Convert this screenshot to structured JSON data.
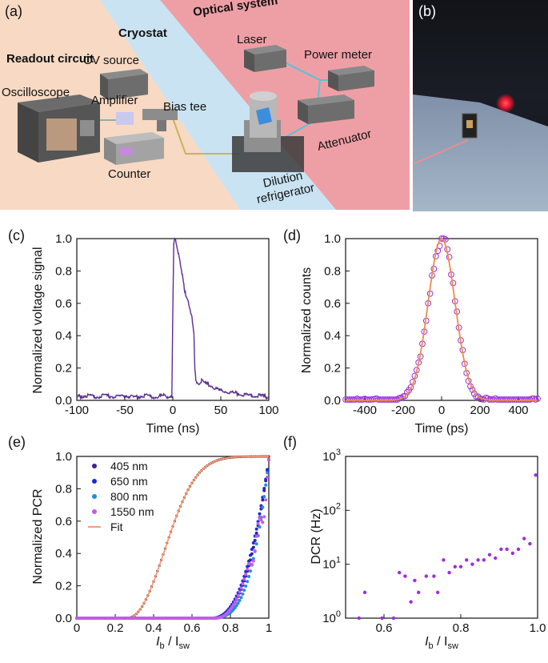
{
  "panel_a": {
    "letter": "(a)",
    "titles": {
      "readout": "Readout circuit",
      "cryostat": "Cryostat",
      "optical": "Optical system"
    },
    "labels": {
      "oscilloscope": "Oscilloscope",
      "cv_source": "CV source",
      "amplifier": "Amplifier",
      "bias_tee": "Bias tee",
      "counter": "Counter",
      "laser": "Laser",
      "power_meter": "Power meter",
      "attenuator": "Attenuator",
      "dilution_1": "Dilution",
      "dilution_2": "refrigerator"
    },
    "colors": {
      "readout_bg": "#f7d9c4",
      "cryostat_bg": "#c9e3f2",
      "optical_bg": "#ee9fa6",
      "fiber": "#55c4d8",
      "wire": "#c8b45a"
    }
  },
  "panel_b": {
    "letter": "(b)",
    "icons": [
      "laser-spot-icon",
      "detector-chip-icon"
    ]
  },
  "chart_data": [
    {
      "panel": "(c)",
      "type": "line",
      "xlabel": "Time (ns)",
      "ylabel": "Normalized voltage signal",
      "xlim": [
        -100,
        100
      ],
      "ylim": [
        0,
        1.0
      ],
      "xticks": [
        -100,
        -50,
        0,
        50,
        100
      ],
      "yticks": [
        0.0,
        0.2,
        0.4,
        0.6,
        0.8,
        1.0
      ],
      "color": "#5b2d8e",
      "series": [
        {
          "x": [
            -100,
            -90,
            -80,
            -70,
            -60,
            -50,
            -40,
            -30,
            -20,
            -10,
            -5,
            -1,
            0,
            1,
            2,
            3,
            5,
            8,
            10,
            12,
            15,
            18,
            20,
            22,
            23,
            24,
            25,
            26,
            28,
            30,
            35,
            40,
            45,
            50,
            60,
            70,
            80,
            90,
            100
          ],
          "y": [
            0.02,
            0.03,
            0.02,
            0.03,
            0.02,
            0.03,
            0.02,
            0.03,
            0.02,
            0.03,
            0.02,
            0.03,
            0.55,
            0.95,
            1.0,
            0.98,
            0.92,
            0.85,
            0.78,
            0.7,
            0.62,
            0.55,
            0.5,
            0.4,
            0.2,
            0.14,
            0.12,
            0.11,
            0.11,
            0.12,
            0.1,
            0.09,
            0.07,
            0.06,
            0.05,
            0.04,
            0.03,
            0.03,
            0.02
          ]
        }
      ]
    },
    {
      "panel": "(d)",
      "type": "scatter",
      "xlabel": "Time (ps)",
      "ylabel": "Normalized counts",
      "xlim": [
        -500,
        500
      ],
      "ylim": [
        0,
        1.0
      ],
      "xticks": [
        -400,
        -200,
        0,
        200,
        400
      ],
      "yticks": [
        0.0,
        0.2,
        0.4,
        0.6,
        0.8,
        1.0
      ],
      "gaussian": {
        "center": 0,
        "sigma": 70,
        "amplitude": 1.0
      },
      "series": [
        {
          "kind": "points",
          "color": "#9b30d9",
          "x_range": [
            -500,
            500
          ],
          "step": 10
        },
        {
          "kind": "fit",
          "color": "#f08a4b"
        }
      ]
    },
    {
      "panel": "(e)",
      "type": "scatter",
      "xlabel": "I",
      "xlabel_sub1": "b",
      "xlabel_sep": " / I",
      "xlabel_sub2": "sw",
      "ylabel": "Normalized PCR",
      "xlim": [
        0,
        1.0
      ],
      "ylim": [
        0,
        1.0
      ],
      "xticks": [
        0.0,
        0.2,
        0.4,
        0.6,
        0.8,
        1.0
      ],
      "yticks": [
        0.0,
        0.2,
        0.4,
        0.6,
        0.8,
        1.0
      ],
      "series": [
        {
          "name": "405 nm",
          "color": "#3d2099",
          "onset": 0.7,
          "exp": 2.6
        },
        {
          "name": "650 nm",
          "color": "#1f2ad6",
          "onset": 0.7,
          "exp": 2.4
        },
        {
          "name": "800 nm",
          "color": "#1f8be0",
          "onset": 0.68,
          "exp": 3.4
        },
        {
          "name": "1550 nm",
          "color": "#c05ee8",
          "onset": 0.72,
          "exp": 2.3
        },
        {
          "name": "Fit",
          "color": "#f2a07a",
          "kind": "fit",
          "onset": 0.26,
          "center": 0.44,
          "width": 0.1
        }
      ],
      "sigmoid_points": {
        "color": "#8a2e2e",
        "x_range": [
          0.0,
          1.0
        ],
        "step": 0.01
      }
    },
    {
      "panel": "(f)",
      "type": "scatter",
      "xlabel": "I",
      "xlabel_sub1": "b",
      "xlabel_sep": " / I",
      "xlabel_sub2": "sw",
      "ylabel": "DCR (Hz)",
      "xlim": [
        0.5,
        1.0
      ],
      "ylim_log": [
        1,
        1000
      ],
      "yscale": "log",
      "xticks": [
        0.6,
        0.8,
        1.0
      ],
      "yticks": [
        "10^0",
        "10^1",
        "10^2",
        "10^3"
      ],
      "color": "#9b30d9",
      "x": [
        0.535,
        0.55,
        0.595,
        0.625,
        0.64,
        0.655,
        0.67,
        0.68,
        0.69,
        0.71,
        0.73,
        0.74,
        0.755,
        0.77,
        0.785,
        0.8,
        0.815,
        0.83,
        0.845,
        0.86,
        0.875,
        0.89,
        0.905,
        0.92,
        0.935,
        0.95,
        0.965,
        0.98,
        0.995
      ],
      "y": [
        1,
        3,
        1,
        1,
        7,
        6,
        2,
        5,
        3,
        6,
        6,
        3,
        12,
        7,
        9,
        9,
        12,
        10,
        12,
        12,
        15,
        13,
        19,
        19,
        16,
        19,
        30,
        24,
        450
      ]
    }
  ]
}
